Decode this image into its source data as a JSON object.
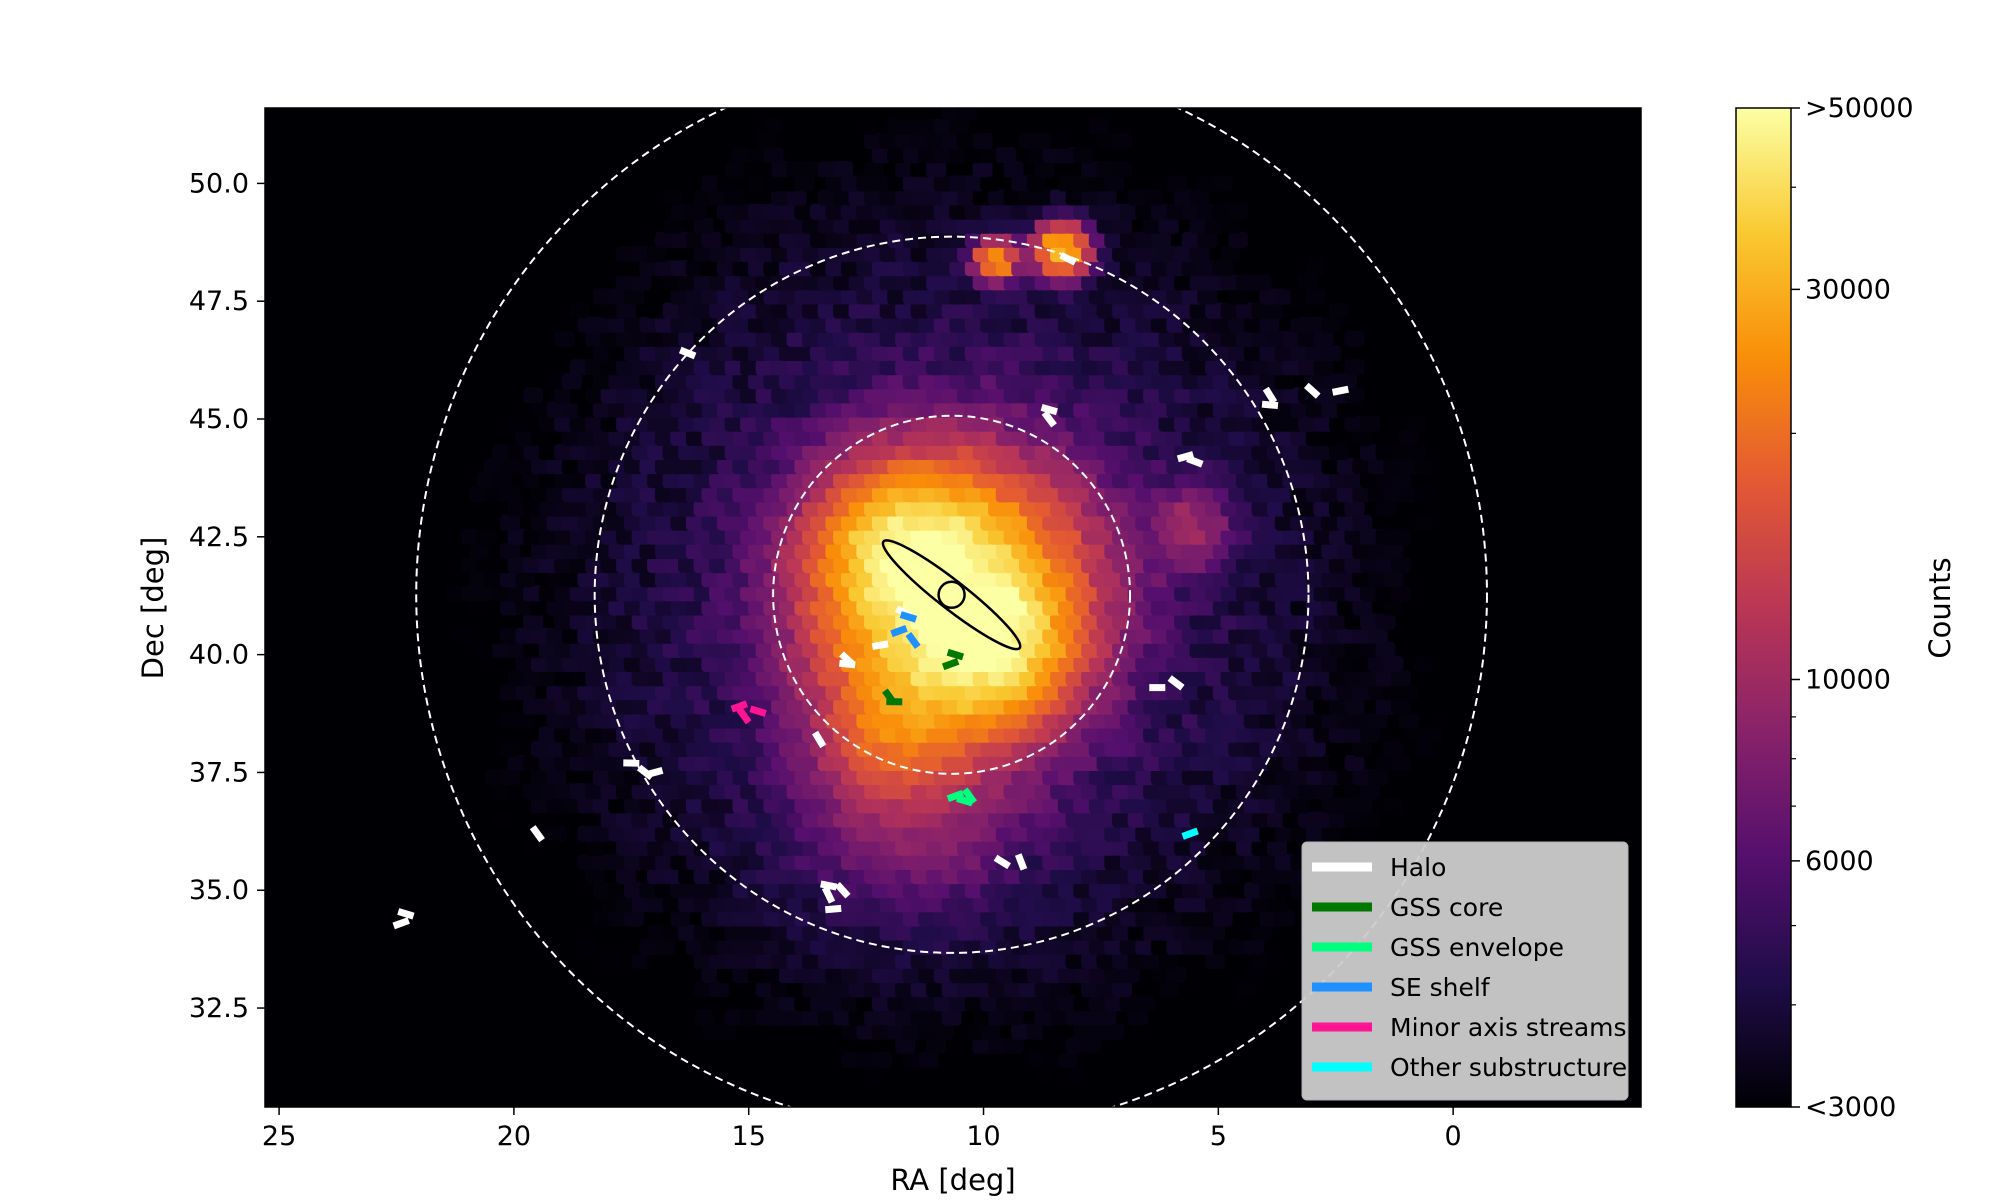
{
  "chart_data": {
    "type": "heatmap",
    "xlabel": "RA [deg]",
    "ylabel": "Dec [deg]",
    "xlim": [
      25.3,
      -4
    ],
    "ylim": [
      30.4,
      51.6
    ],
    "x_ticks": [
      "25",
      "20",
      "15",
      "10",
      "5",
      "0"
    ],
    "x_tick_values": [
      25,
      20,
      15,
      10,
      5,
      0
    ],
    "y_ticks": [
      "32.5",
      "35.0",
      "37.5",
      "40.0",
      "42.5",
      "45.0",
      "47.5",
      "50.0"
    ],
    "y_tick_values": [
      32.5,
      35.0,
      37.5,
      40.0,
      42.5,
      45.0,
      47.5,
      50.0
    ],
    "colorbar": {
      "label": "Counts",
      "scale": "log",
      "range": [
        3000,
        50000
      ],
      "tick_values": [
        3000,
        6000,
        10000,
        30000,
        50000
      ],
      "tick_labels": [
        "<3000",
        "6000",
        "10000",
        "30000",
        ">50000"
      ],
      "colormap": "inferno",
      "colormap_stops": [
        "#000004",
        "#1f0c48",
        "#550f6d",
        "#88226a",
        "#ba3655",
        "#e35933",
        "#f98e09",
        "#f9c932",
        "#fcffa4"
      ]
    },
    "center": {
      "ra": 10.68,
      "dec": 41.27
    },
    "rings_deg": [
      3.8,
      7.6,
      11.4
    ],
    "disk_ellipse": {
      "center": [
        10.68,
        41.27
      ],
      "semi_major_deg": 1.6,
      "semi_minor_deg": 0.3,
      "position_angle_deg": 38
    },
    "density_features": [
      {
        "ra": 10.68,
        "dec": 41.27,
        "sigma": 1.7,
        "amplitude": 40000
      },
      {
        "ra": 9.8,
        "dec": 40.2,
        "sigma": 1.0,
        "amplitude": 22000
      },
      {
        "ra": 11.8,
        "dec": 42.3,
        "sigma": 1.0,
        "amplitude": 18000
      },
      {
        "ra": 12.0,
        "dec": 38.5,
        "sigma": 0.9,
        "amplitude": 9000
      },
      {
        "ra": 9.7,
        "dec": 48.4,
        "sigma": 0.28,
        "amplitude": 25000
      },
      {
        "ra": 8.3,
        "dec": 48.6,
        "sigma": 0.35,
        "amplitude": 30000
      },
      {
        "ra": 11.5,
        "dec": 37.0,
        "sigma": 1.5,
        "amplitude": 5000
      },
      {
        "ra": 5.5,
        "dec": 42.7,
        "sigma": 0.6,
        "amplitude": 5500
      }
    ],
    "series": [
      {
        "name": "Halo",
        "color": "#ffffff",
        "fields": [
          [
            22.4,
            34.3
          ],
          [
            22.3,
            34.5
          ],
          [
            19.5,
            36.2
          ],
          [
            17.5,
            37.7
          ],
          [
            17.2,
            37.5
          ],
          [
            17.0,
            37.5
          ],
          [
            16.3,
            46.4
          ],
          [
            13.5,
            38.2
          ],
          [
            12.9,
            39.8
          ],
          [
            12.9,
            39.9
          ],
          [
            12.2,
            40.2
          ],
          [
            11.7,
            40.9
          ],
          [
            13.3,
            34.9
          ],
          [
            13.3,
            35.1
          ],
          [
            13.0,
            35.0
          ],
          [
            13.2,
            34.6
          ],
          [
            9.6,
            35.6
          ],
          [
            9.2,
            35.6
          ],
          [
            8.6,
            45.2
          ],
          [
            8.6,
            45.0
          ],
          [
            6.3,
            39.3
          ],
          [
            5.9,
            39.4
          ],
          [
            5.7,
            44.2
          ],
          [
            5.5,
            44.1
          ],
          [
            3.9,
            45.5
          ],
          [
            3.9,
            45.3
          ],
          [
            3.0,
            45.6
          ],
          [
            2.4,
            45.6
          ],
          [
            8.2,
            48.4
          ]
        ]
      },
      {
        "name": "GSS core",
        "color": "#007800",
        "fields": [
          [
            10.7,
            39.8
          ],
          [
            10.6,
            40.0
          ],
          [
            12.0,
            39.1
          ],
          [
            11.9,
            39.0
          ]
        ]
      },
      {
        "name": "GSS envelope",
        "color": "#00ff7f",
        "fields": [
          [
            10.6,
            37.0
          ],
          [
            10.4,
            36.9
          ],
          [
            10.3,
            37.0
          ]
        ]
      },
      {
        "name": "SE shelf",
        "color": "#1e90ff",
        "fields": [
          [
            11.8,
            40.5
          ],
          [
            11.6,
            40.8
          ],
          [
            11.5,
            40.3
          ]
        ]
      },
      {
        "name": "Minor axis streams",
        "color": "#ff1493",
        "fields": [
          [
            15.2,
            38.9
          ],
          [
            14.8,
            38.8
          ],
          [
            15.1,
            38.7
          ]
        ]
      },
      {
        "name": "Other substructure",
        "color": "#00ffff",
        "fields": [
          [
            5.6,
            36.2
          ]
        ]
      }
    ],
    "legend_position": "lower-right"
  }
}
